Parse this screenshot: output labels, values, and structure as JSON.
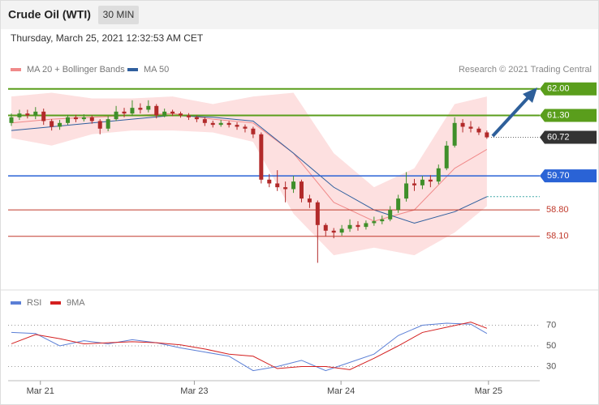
{
  "header": {
    "title": "Crude Oil (WTI)",
    "interval": "30 MIN",
    "datetime": "Thursday, March 25, 2021 12:32:53 AM CET",
    "credit": "Research © 2021 Trading Central"
  },
  "chart_data": {
    "type": "candlestick",
    "legend": [
      {
        "name": "MA 20 + Bollinger Bands",
        "color": "#f08a8a"
      },
      {
        "name": "MA 50",
        "color": "#2f5f9e"
      }
    ],
    "up_color": "#3f8f2a",
    "down_color": "#b22a2a",
    "ylim": [
      56.96,
      62.21
    ],
    "xticks": [
      {
        "value": 3.6,
        "label": "Mar 21"
      },
      {
        "value": 22.7,
        "label": "Mar 23"
      },
      {
        "value": 40.9,
        "label": "Mar 24"
      },
      {
        "value": 59.2,
        "label": "Mar 25"
      }
    ],
    "candles": [
      [
        61.1,
        61.35,
        61.02,
        61.25
      ],
      [
        61.25,
        61.45,
        61.18,
        61.35
      ],
      [
        61.35,
        61.45,
        61.22,
        61.3
      ],
      [
        61.3,
        61.52,
        61.2,
        61.4
      ],
      [
        61.4,
        61.48,
        61.05,
        61.15
      ],
      [
        61.15,
        61.2,
        60.9,
        61.0
      ],
      [
        61.0,
        61.18,
        60.92,
        61.1
      ],
      [
        61.1,
        61.32,
        61.05,
        61.25
      ],
      [
        61.25,
        61.32,
        61.12,
        61.2
      ],
      [
        61.2,
        61.33,
        61.14,
        61.25
      ],
      [
        61.25,
        61.3,
        61.08,
        61.15
      ],
      [
        61.15,
        61.2,
        60.8,
        60.95
      ],
      [
        60.95,
        61.28,
        60.88,
        61.2
      ],
      [
        61.2,
        61.55,
        61.15,
        61.4
      ],
      [
        61.4,
        61.5,
        61.25,
        61.35
      ],
      [
        61.35,
        61.7,
        61.28,
        61.5
      ],
      [
        61.5,
        61.62,
        61.35,
        61.45
      ],
      [
        61.45,
        61.7,
        61.38,
        61.55
      ],
      [
        61.55,
        61.6,
        61.22,
        61.3
      ],
      [
        61.3,
        61.48,
        61.25,
        61.4
      ],
      [
        61.4,
        61.45,
        61.28,
        61.35
      ],
      [
        61.35,
        61.4,
        61.24,
        61.3
      ],
      [
        61.3,
        61.36,
        61.18,
        61.25
      ],
      [
        61.25,
        61.3,
        61.12,
        61.2
      ],
      [
        61.2,
        61.25,
        61.02,
        61.1
      ],
      [
        61.1,
        61.16,
        60.98,
        61.05
      ],
      [
        61.05,
        61.18,
        61.0,
        61.1
      ],
      [
        61.1,
        61.15,
        60.98,
        61.05
      ],
      [
        61.05,
        61.12,
        60.92,
        61.0
      ],
      [
        61.0,
        61.06,
        60.85,
        60.95
      ],
      [
        60.95,
        61.0,
        60.7,
        60.8
      ],
      [
        60.8,
        60.85,
        59.5,
        59.6
      ],
      [
        59.6,
        59.75,
        59.4,
        59.5
      ],
      [
        59.5,
        59.85,
        59.3,
        59.4
      ],
      [
        59.4,
        59.55,
        59.0,
        59.35
      ],
      [
        59.35,
        59.7,
        59.25,
        59.55
      ],
      [
        59.55,
        59.6,
        59.0,
        59.1
      ],
      [
        59.1,
        59.2,
        58.85,
        59.0
      ],
      [
        59.0,
        59.05,
        57.4,
        58.4
      ],
      [
        58.4,
        58.45,
        58.1,
        58.25
      ],
      [
        58.25,
        58.32,
        58.05,
        58.2
      ],
      [
        58.2,
        58.4,
        58.12,
        58.3
      ],
      [
        58.3,
        58.55,
        58.22,
        58.4
      ],
      [
        58.4,
        58.5,
        58.25,
        58.35
      ],
      [
        58.35,
        58.52,
        58.28,
        58.45
      ],
      [
        58.45,
        58.62,
        58.38,
        58.5
      ],
      [
        58.5,
        58.65,
        58.42,
        58.55
      ],
      [
        58.55,
        58.9,
        58.5,
        58.8
      ],
      [
        58.8,
        59.2,
        58.72,
        59.1
      ],
      [
        59.1,
        59.8,
        59.02,
        59.5
      ],
      [
        59.5,
        59.62,
        59.3,
        59.45
      ],
      [
        59.45,
        59.7,
        59.35,
        59.6
      ],
      [
        59.6,
        59.72,
        59.4,
        59.55
      ],
      [
        59.55,
        60.0,
        59.48,
        59.9
      ],
      [
        59.9,
        60.62,
        59.85,
        60.5
      ],
      [
        60.5,
        61.25,
        60.45,
        61.1
      ],
      [
        61.1,
        61.2,
        60.85,
        61.0
      ],
      [
        61.0,
        61.15,
        60.85,
        60.95
      ],
      [
        60.95,
        61.0,
        60.78,
        60.85
      ],
      [
        60.85,
        60.9,
        60.68,
        60.72
      ]
    ],
    "bands": {
      "x": [
        0,
        5,
        10,
        15,
        20,
        25,
        30,
        35,
        40,
        45,
        50,
        55,
        59
      ],
      "upper": [
        61.8,
        61.9,
        61.75,
        61.75,
        61.8,
        61.6,
        61.8,
        61.9,
        60.3,
        59.4,
        59.9,
        61.6,
        61.8
      ],
      "lower": [
        60.7,
        60.5,
        60.8,
        60.9,
        60.9,
        60.85,
        60.6,
        58.7,
        57.6,
        57.8,
        57.6,
        58.2,
        58.9
      ],
      "ma20": [
        61.1,
        61.2,
        61.25,
        61.3,
        61.35,
        61.2,
        61.1,
        60.3,
        59.0,
        58.5,
        58.8,
        59.9,
        60.4
      ]
    },
    "ma50": {
      "x": [
        0,
        5,
        10,
        15,
        20,
        25,
        30,
        35,
        40,
        45,
        50,
        55,
        59
      ],
      "values": [
        60.9,
        61.0,
        61.1,
        61.2,
        61.3,
        61.25,
        61.15,
        60.3,
        59.4,
        58.8,
        58.45,
        58.75,
        59.15
      ]
    },
    "levels": [
      {
        "value": 62.0,
        "label": "62.00",
        "color": "#5a9e1c",
        "kind": "box"
      },
      {
        "value": 61.3,
        "label": "61.30",
        "color": "#5a9e1c",
        "kind": "box"
      },
      {
        "value": 60.72,
        "label": "60.72",
        "color": "#333333",
        "kind": "last"
      },
      {
        "value": 59.7,
        "label": "59.70",
        "color": "#2a63d6",
        "kind": "box"
      },
      {
        "value": 58.8,
        "label": "58.80",
        "color": "#c0392b",
        "kind": "text"
      },
      {
        "value": 58.1,
        "label": "58.10",
        "color": "#c0392b",
        "kind": "text"
      }
    ],
    "rsi": {
      "ylim": [
        20,
        84
      ],
      "yticks": [
        30,
        50,
        70
      ],
      "x": [
        0,
        3,
        6,
        9,
        12,
        15,
        18,
        21,
        24,
        27,
        30,
        33,
        36,
        39,
        42,
        45,
        48,
        51,
        54,
        57,
        59
      ],
      "series": [
        {
          "name": "RSI",
          "color": "#5b7fd6",
          "values": [
            63,
            62,
            50,
            55,
            52,
            56,
            53,
            48,
            44,
            40,
            26,
            30,
            36,
            26,
            34,
            42,
            60,
            70,
            72,
            71,
            62
          ]
        },
        {
          "name": "9MA",
          "color": "#d42020",
          "values": [
            52,
            61,
            57,
            52,
            53,
            54,
            53,
            51,
            47,
            42,
            40,
            28,
            30,
            30,
            27,
            38,
            50,
            63,
            68,
            73,
            67
          ]
        }
      ]
    }
  }
}
